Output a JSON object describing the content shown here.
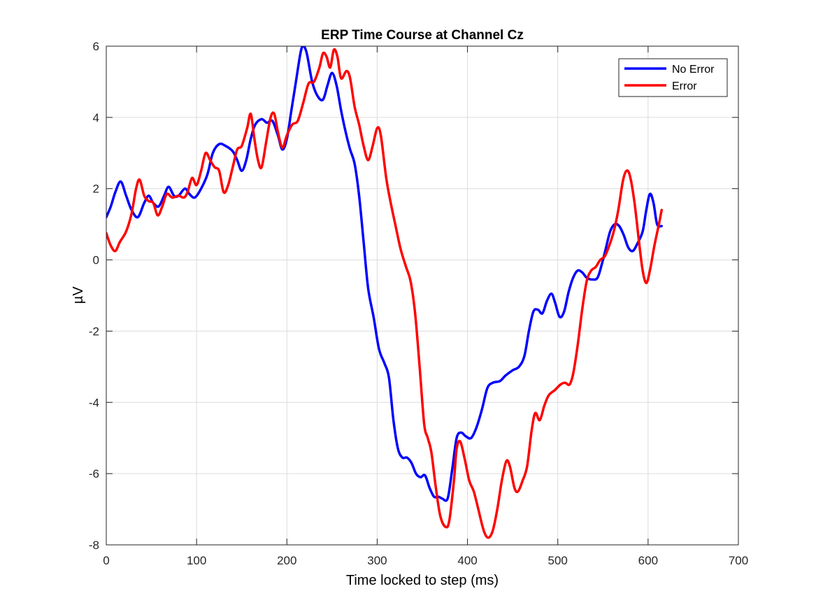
{
  "chart_data": {
    "type": "line",
    "title": "ERP Time Course at Channel Cz",
    "xlabel": "Time locked to step (ms)",
    "ylabel": "µV",
    "xlim": [
      0,
      700
    ],
    "ylim": [
      -8,
      6
    ],
    "xticks": [
      0,
      100,
      200,
      300,
      400,
      500,
      600,
      700
    ],
    "yticks": [
      -8,
      -6,
      -4,
      -2,
      0,
      2,
      4,
      6
    ],
    "grid": true,
    "legend_position": "top-right",
    "series": [
      {
        "name": "No Error",
        "color": "#0000ff",
        "points": [
          [
            0,
            1.2
          ],
          [
            5,
            1.5
          ],
          [
            10,
            1.9
          ],
          [
            16,
            2.2
          ],
          [
            22,
            1.8
          ],
          [
            28,
            1.4
          ],
          [
            35,
            1.2
          ],
          [
            42,
            1.6
          ],
          [
            47,
            1.8
          ],
          [
            52,
            1.6
          ],
          [
            58,
            1.5
          ],
          [
            64,
            1.8
          ],
          [
            69,
            2.05
          ],
          [
            75,
            1.8
          ],
          [
            80,
            1.8
          ],
          [
            87,
            2.0
          ],
          [
            92,
            1.85
          ],
          [
            98,
            1.75
          ],
          [
            105,
            2.0
          ],
          [
            112,
            2.4
          ],
          [
            118,
            3.0
          ],
          [
            125,
            3.25
          ],
          [
            132,
            3.2
          ],
          [
            140,
            3.05
          ],
          [
            145,
            2.8
          ],
          [
            150,
            2.5
          ],
          [
            155,
            2.8
          ],
          [
            160,
            3.4
          ],
          [
            165,
            3.8
          ],
          [
            172,
            3.95
          ],
          [
            178,
            3.85
          ],
          [
            184,
            3.9
          ],
          [
            190,
            3.5
          ],
          [
            195,
            3.1
          ],
          [
            200,
            3.4
          ],
          [
            205,
            4.2
          ],
          [
            210,
            5.0
          ],
          [
            215,
            5.8
          ],
          [
            218,
            6.0
          ],
          [
            222,
            5.8
          ],
          [
            228,
            5.0
          ],
          [
            234,
            4.6
          ],
          [
            240,
            4.5
          ],
          [
            245,
            4.9
          ],
          [
            250,
            5.25
          ],
          [
            255,
            4.9
          ],
          [
            260,
            4.2
          ],
          [
            265,
            3.6
          ],
          [
            270,
            3.1
          ],
          [
            275,
            2.7
          ],
          [
            280,
            1.8
          ],
          [
            285,
            0.5
          ],
          [
            290,
            -0.8
          ],
          [
            296,
            -1.6
          ],
          [
            302,
            -2.5
          ],
          [
            308,
            -2.9
          ],
          [
            313,
            -3.3
          ],
          [
            318,
            -4.5
          ],
          [
            323,
            -5.3
          ],
          [
            328,
            -5.55
          ],
          [
            333,
            -5.55
          ],
          [
            338,
            -5.7
          ],
          [
            343,
            -6.0
          ],
          [
            348,
            -6.1
          ],
          [
            353,
            -6.05
          ],
          [
            358,
            -6.4
          ],
          [
            363,
            -6.65
          ],
          [
            368,
            -6.65
          ],
          [
            372,
            -6.7
          ],
          [
            378,
            -6.7
          ],
          [
            383,
            -5.9
          ],
          [
            388,
            -5.0
          ],
          [
            393,
            -4.85
          ],
          [
            398,
            -4.95
          ],
          [
            404,
            -5.0
          ],
          [
            410,
            -4.7
          ],
          [
            416,
            -4.2
          ],
          [
            422,
            -3.6
          ],
          [
            428,
            -3.45
          ],
          [
            436,
            -3.4
          ],
          [
            442,
            -3.25
          ],
          [
            450,
            -3.1
          ],
          [
            457,
            -3.0
          ],
          [
            463,
            -2.7
          ],
          [
            468,
            -2.0
          ],
          [
            473,
            -1.45
          ],
          [
            478,
            -1.4
          ],
          [
            483,
            -1.5
          ],
          [
            488,
            -1.15
          ],
          [
            493,
            -0.95
          ],
          [
            497,
            -1.2
          ],
          [
            502,
            -1.6
          ],
          [
            507,
            -1.45
          ],
          [
            512,
            -0.9
          ],
          [
            517,
            -0.5
          ],
          [
            522,
            -0.3
          ],
          [
            527,
            -0.35
          ],
          [
            532,
            -0.5
          ],
          [
            538,
            -0.55
          ],
          [
            544,
            -0.5
          ],
          [
            549,
            -0.1
          ],
          [
            553,
            0.3
          ],
          [
            558,
            0.8
          ],
          [
            563,
            1.0
          ],
          [
            568,
            0.95
          ],
          [
            573,
            0.7
          ],
          [
            578,
            0.35
          ],
          [
            583,
            0.25
          ],
          [
            588,
            0.45
          ],
          [
            594,
            0.8
          ],
          [
            598,
            1.4
          ],
          [
            602,
            1.85
          ],
          [
            606,
            1.6
          ],
          [
            610,
            1.0
          ],
          [
            615,
            0.95
          ]
        ]
      },
      {
        "name": "Error",
        "color": "#ff0000",
        "points": [
          [
            0,
            0.75
          ],
          [
            5,
            0.4
          ],
          [
            10,
            0.25
          ],
          [
            15,
            0.5
          ],
          [
            22,
            0.8
          ],
          [
            28,
            1.3
          ],
          [
            33,
            2.0
          ],
          [
            37,
            2.25
          ],
          [
            42,
            1.8
          ],
          [
            47,
            1.65
          ],
          [
            52,
            1.6
          ],
          [
            57,
            1.25
          ],
          [
            62,
            1.5
          ],
          [
            67,
            1.85
          ],
          [
            73,
            1.75
          ],
          [
            80,
            1.8
          ],
          [
            86,
            1.75
          ],
          [
            90,
            1.9
          ],
          [
            95,
            2.3
          ],
          [
            100,
            2.1
          ],
          [
            105,
            2.5
          ],
          [
            110,
            3.0
          ],
          [
            115,
            2.8
          ],
          [
            120,
            2.6
          ],
          [
            125,
            2.5
          ],
          [
            130,
            1.9
          ],
          [
            135,
            2.1
          ],
          [
            140,
            2.6
          ],
          [
            145,
            3.1
          ],
          [
            150,
            3.2
          ],
          [
            156,
            3.7
          ],
          [
            160,
            4.1
          ],
          [
            164,
            3.4
          ],
          [
            168,
            2.8
          ],
          [
            172,
            2.6
          ],
          [
            177,
            3.3
          ],
          [
            182,
            4.0
          ],
          [
            186,
            4.1
          ],
          [
            190,
            3.6
          ],
          [
            195,
            3.15
          ],
          [
            200,
            3.5
          ],
          [
            206,
            3.8
          ],
          [
            212,
            3.9
          ],
          [
            218,
            4.4
          ],
          [
            224,
            4.95
          ],
          [
            230,
            5.0
          ],
          [
            236,
            5.4
          ],
          [
            240,
            5.8
          ],
          [
            244,
            5.7
          ],
          [
            248,
            5.4
          ],
          [
            252,
            5.9
          ],
          [
            256,
            5.7
          ],
          [
            260,
            5.1
          ],
          [
            266,
            5.3
          ],
          [
            270,
            5.1
          ],
          [
            275,
            4.3
          ],
          [
            280,
            3.8
          ],
          [
            285,
            3.2
          ],
          [
            290,
            2.8
          ],
          [
            295,
            3.2
          ],
          [
            300,
            3.7
          ],
          [
            304,
            3.5
          ],
          [
            310,
            2.3
          ],
          [
            315,
            1.6
          ],
          [
            320,
            1.0
          ],
          [
            326,
            0.3
          ],
          [
            332,
            -0.2
          ],
          [
            337,
            -0.6
          ],
          [
            342,
            -1.5
          ],
          [
            347,
            -3.0
          ],
          [
            352,
            -4.6
          ],
          [
            356,
            -5.0
          ],
          [
            360,
            -5.4
          ],
          [
            365,
            -6.4
          ],
          [
            370,
            -7.2
          ],
          [
            376,
            -7.5
          ],
          [
            380,
            -7.3
          ],
          [
            385,
            -6.2
          ],
          [
            388,
            -5.3
          ],
          [
            392,
            -5.1
          ],
          [
            397,
            -5.6
          ],
          [
            402,
            -6.2
          ],
          [
            407,
            -6.5
          ],
          [
            412,
            -7.0
          ],
          [
            418,
            -7.6
          ],
          [
            423,
            -7.8
          ],
          [
            428,
            -7.6
          ],
          [
            433,
            -7.0
          ],
          [
            438,
            -6.2
          ],
          [
            443,
            -5.65
          ],
          [
            447,
            -5.8
          ],
          [
            452,
            -6.4
          ],
          [
            456,
            -6.5
          ],
          [
            461,
            -6.2
          ],
          [
            466,
            -5.8
          ],
          [
            471,
            -4.8
          ],
          [
            475,
            -4.3
          ],
          [
            480,
            -4.5
          ],
          [
            485,
            -4.1
          ],
          [
            490,
            -3.8
          ],
          [
            497,
            -3.65
          ],
          [
            503,
            -3.5
          ],
          [
            508,
            -3.45
          ],
          [
            513,
            -3.5
          ],
          [
            517,
            -3.2
          ],
          [
            522,
            -2.4
          ],
          [
            527,
            -1.4
          ],
          [
            532,
            -0.6
          ],
          [
            537,
            -0.3
          ],
          [
            542,
            -0.2
          ],
          [
            547,
            0.0
          ],
          [
            552,
            0.1
          ],
          [
            557,
            0.4
          ],
          [
            562,
            0.8
          ],
          [
            567,
            1.4
          ],
          [
            572,
            2.2
          ],
          [
            576,
            2.5
          ],
          [
            580,
            2.35
          ],
          [
            585,
            1.6
          ],
          [
            590,
            0.5
          ],
          [
            594,
            -0.3
          ],
          [
            598,
            -0.65
          ],
          [
            602,
            -0.3
          ],
          [
            607,
            0.4
          ],
          [
            612,
            1.0
          ],
          [
            615,
            1.4
          ]
        ]
      }
    ]
  }
}
